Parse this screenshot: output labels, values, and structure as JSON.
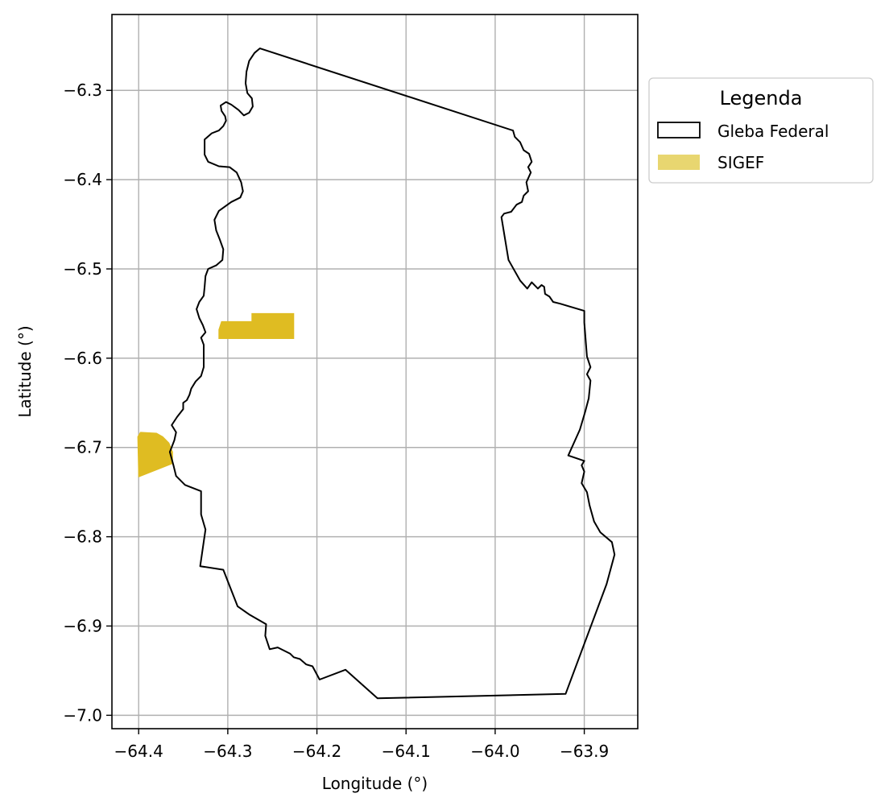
{
  "chart_data": {
    "type": "map",
    "xlabel": "Longitude (°)",
    "ylabel": "Latitude (°)",
    "xlim": [
      -64.43,
      -63.84
    ],
    "ylim": [
      -7.015,
      -6.215
    ],
    "xticks": [
      -64.4,
      -64.3,
      -64.2,
      -64.1,
      -64.0,
      -63.9
    ],
    "xtick_labels": [
      "−64.4",
      "−64.3",
      "−64.2",
      "−64.1",
      "−64.0",
      "−63.9"
    ],
    "yticks": [
      -6.3,
      -6.4,
      -6.5,
      -6.6,
      -6.7,
      -6.8,
      -6.9,
      -7.0
    ],
    "ytick_labels": [
      "−6.3",
      "−6.4",
      "−6.5",
      "−6.6",
      "−6.7",
      "−6.8",
      "−6.9",
      "−7.0"
    ],
    "grid": true,
    "legend": {
      "title": "Legenda",
      "placement": "outside upper right",
      "entries": [
        {
          "label": "Gleba Federal",
          "style": "outline",
          "color": "#000000"
        },
        {
          "label": "SIGEF",
          "style": "fill",
          "color": "#e8d670"
        }
      ]
    },
    "layers": [
      {
        "name": "Gleba Federal",
        "style": "outline",
        "stroke": "#000000",
        "polygons": [
          [
            [
              -64.264,
              -6.253
            ],
            [
              -64.27,
              -6.258
            ],
            [
              -64.276,
              -6.267
            ],
            [
              -64.279,
              -6.279
            ],
            [
              -64.28,
              -6.292
            ],
            [
              -64.278,
              -6.303
            ],
            [
              -64.273,
              -6.309
            ],
            [
              -64.272,
              -6.318
            ],
            [
              -64.276,
              -6.325
            ],
            [
              -64.282,
              -6.328
            ],
            [
              -64.288,
              -6.322
            ],
            [
              -64.296,
              -6.316
            ],
            [
              -64.302,
              -6.313
            ],
            [
              -64.308,
              -6.317
            ],
            [
              -64.307,
              -6.323
            ],
            [
              -64.303,
              -6.329
            ],
            [
              -64.302,
              -6.334
            ],
            [
              -64.305,
              -6.34
            ],
            [
              -64.31,
              -6.345
            ],
            [
              -64.318,
              -6.348
            ],
            [
              -64.326,
              -6.355
            ],
            [
              -64.326,
              -6.372
            ],
            [
              -64.322,
              -6.38
            ],
            [
              -64.31,
              -6.385
            ],
            [
              -64.298,
              -6.386
            ],
            [
              -64.29,
              -6.392
            ],
            [
              -64.285,
              -6.403
            ],
            [
              -64.283,
              -6.413
            ],
            [
              -64.286,
              -6.42
            ],
            [
              -64.296,
              -6.425
            ],
            [
              -64.31,
              -6.435
            ],
            [
              -64.315,
              -6.445
            ],
            [
              -64.313,
              -6.457
            ],
            [
              -64.309,
              -6.467
            ],
            [
              -64.305,
              -6.478
            ],
            [
              -64.306,
              -6.49
            ],
            [
              -64.313,
              -6.496
            ],
            [
              -64.322,
              -6.5
            ],
            [
              -64.325,
              -6.508
            ],
            [
              -64.326,
              -6.52
            ],
            [
              -64.327,
              -6.53
            ],
            [
              -64.332,
              -6.537
            ],
            [
              -64.335,
              -6.545
            ],
            [
              -64.332,
              -6.555
            ],
            [
              -64.328,
              -6.563
            ],
            [
              -64.325,
              -6.571
            ],
            [
              -64.33,
              -6.577
            ],
            [
              -64.327,
              -6.585
            ],
            [
              -64.327,
              -6.598
            ],
            [
              -64.327,
              -6.61
            ],
            [
              -64.33,
              -6.62
            ],
            [
              -64.336,
              -6.626
            ],
            [
              -64.341,
              -6.634
            ],
            [
              -64.343,
              -6.641
            ],
            [
              -64.346,
              -6.647
            ],
            [
              -64.35,
              -6.65
            ],
            [
              -64.35,
              -6.657
            ],
            [
              -64.357,
              -6.666
            ],
            [
              -64.363,
              -6.675
            ],
            [
              -64.358,
              -6.683
            ],
            [
              -64.36,
              -6.692
            ],
            [
              -64.365,
              -6.705
            ],
            [
              -64.361,
              -6.72
            ],
            [
              -64.358,
              -6.732
            ],
            [
              -64.348,
              -6.742
            ],
            [
              -64.33,
              -6.749
            ],
            [
              -64.33,
              -6.775
            ],
            [
              -64.325,
              -6.792
            ],
            [
              -64.331,
              -6.833
            ],
            [
              -64.305,
              -6.837
            ],
            [
              -64.289,
              -6.878
            ],
            [
              -64.276,
              -6.887
            ],
            [
              -64.257,
              -6.898
            ],
            [
              -64.258,
              -6.911
            ],
            [
              -64.253,
              -6.926
            ],
            [
              -64.244,
              -6.924
            ],
            [
              -64.23,
              -6.931
            ],
            [
              -64.226,
              -6.935
            ],
            [
              -64.219,
              -6.937
            ],
            [
              -64.212,
              -6.943
            ],
            [
              -64.205,
              -6.945
            ],
            [
              -64.197,
              -6.96
            ],
            [
              -64.168,
              -6.949
            ],
            [
              -64.132,
              -6.981
            ],
            [
              -63.921,
              -6.976
            ],
            [
              -63.875,
              -6.853
            ],
            [
              -63.866,
              -6.82
            ],
            [
              -63.869,
              -6.806
            ],
            [
              -63.882,
              -6.795
            ],
            [
              -63.889,
              -6.783
            ],
            [
              -63.894,
              -6.765
            ],
            [
              -63.897,
              -6.75
            ],
            [
              -63.903,
              -6.74
            ],
            [
              -63.9,
              -6.727
            ],
            [
              -63.903,
              -6.72
            ],
            [
              -63.9,
              -6.715
            ],
            [
              -63.918,
              -6.709
            ],
            [
              -63.905,
              -6.68
            ],
            [
              -63.899,
              -6.66
            ],
            [
              -63.895,
              -6.645
            ],
            [
              -63.893,
              -6.625
            ],
            [
              -63.897,
              -6.618
            ],
            [
              -63.893,
              -6.61
            ],
            [
              -63.897,
              -6.598
            ],
            [
              -63.9,
              -6.56
            ],
            [
              -63.9,
              -6.547
            ],
            [
              -63.927,
              -6.539
            ],
            [
              -63.935,
              -6.537
            ],
            [
              -63.939,
              -6.531
            ],
            [
              -63.944,
              -6.528
            ],
            [
              -63.945,
              -6.52
            ],
            [
              -63.948,
              -6.518
            ],
            [
              -63.952,
              -6.522
            ],
            [
              -63.959,
              -6.515
            ],
            [
              -63.964,
              -6.522
            ],
            [
              -63.972,
              -6.513
            ],
            [
              -63.985,
              -6.49
            ],
            [
              -63.993,
              -6.442
            ],
            [
              -63.99,
              -6.438
            ],
            [
              -63.982,
              -6.436
            ],
            [
              -63.976,
              -6.428
            ],
            [
              -63.97,
              -6.425
            ],
            [
              -63.968,
              -6.418
            ],
            [
              -63.963,
              -6.413
            ],
            [
              -63.965,
              -6.403
            ],
            [
              -63.96,
              -6.392
            ],
            [
              -63.963,
              -6.386
            ],
            [
              -63.959,
              -6.38
            ],
            [
              -63.962,
              -6.371
            ],
            [
              -63.968,
              -6.367
            ],
            [
              -63.972,
              -6.358
            ],
            [
              -63.978,
              -6.352
            ],
            [
              -63.98,
              -6.345
            ],
            [
              -64.264,
              -6.253
            ]
          ]
        ]
      },
      {
        "name": "SIGEF",
        "style": "fill",
        "fill": "#dfbc22",
        "polygons": [
          [
            [
              -64.307,
              -6.559
            ],
            [
              -64.273,
              -6.559
            ],
            [
              -64.273,
              -6.55
            ],
            [
              -64.226,
              -6.55
            ],
            [
              -64.226,
              -6.578
            ],
            [
              -64.31,
              -6.578
            ],
            [
              -64.31,
              -6.568
            ]
          ],
          [
            [
              -64.398,
              -6.683
            ],
            [
              -64.38,
              -6.684
            ],
            [
              -64.373,
              -6.688
            ],
            [
              -64.366,
              -6.695
            ],
            [
              -64.362,
              -6.705
            ],
            [
              -64.362,
              -6.718
            ],
            [
              -64.4,
              -6.733
            ],
            [
              -64.401,
              -6.688
            ]
          ]
        ]
      }
    ]
  }
}
